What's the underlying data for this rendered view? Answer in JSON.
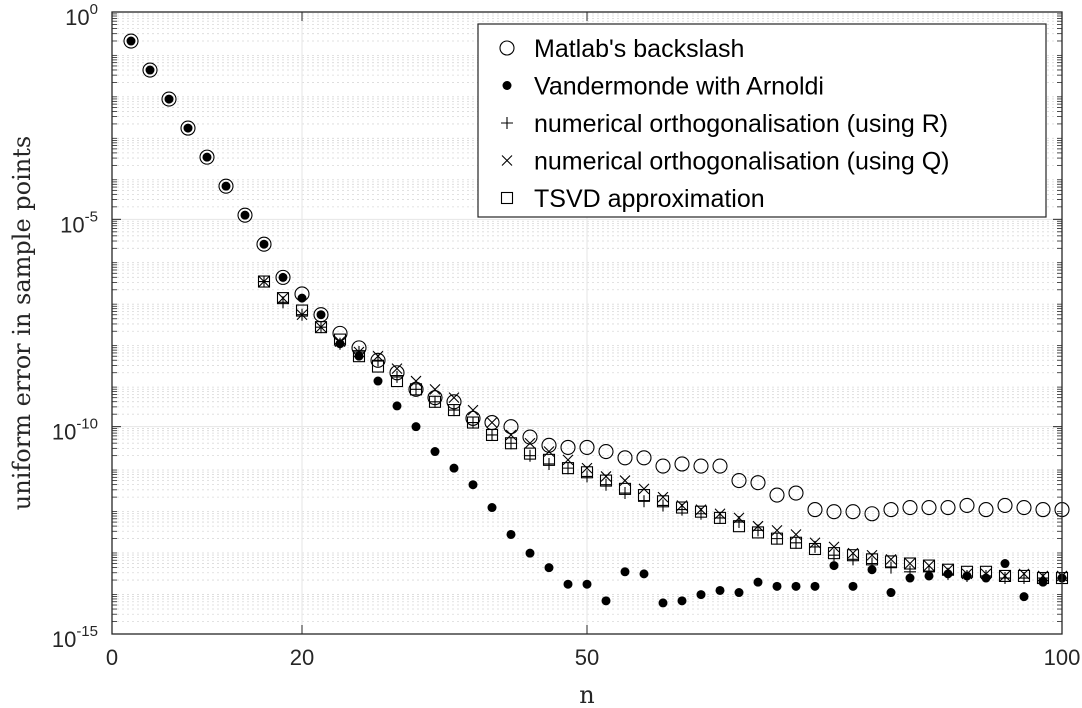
{
  "chart_data": {
    "type": "scatter",
    "title": "",
    "xlabel": "n",
    "ylabel": "uniform error in sample points",
    "xlim": [
      0,
      100
    ],
    "ylim_log10": [
      -15,
      0
    ],
    "x_scale": "linear",
    "y_scale": "log",
    "grid": true,
    "legend_position": "top-right",
    "x_ticks": [
      {
        "value": 0,
        "label": "0"
      },
      {
        "value": 20,
        "label": "20"
      },
      {
        "value": 50,
        "label": "50"
      },
      {
        "value": 100,
        "label": "100"
      }
    ],
    "y_ticks": [
      {
        "exp": 0,
        "base": "10",
        "power": "0"
      },
      {
        "exp": -5,
        "base": "10",
        "power": "-5"
      },
      {
        "exp": -10,
        "base": "10",
        "power": "-10"
      },
      {
        "exp": -15,
        "base": "10",
        "power": "-15"
      }
    ],
    "series": [
      {
        "name": "Matlab's backslash",
        "marker": "circle-open",
        "x": [
          2,
          4,
          6,
          8,
          10,
          12,
          14,
          16,
          18,
          20,
          22,
          24,
          26,
          28,
          30,
          32,
          34,
          36,
          38,
          40,
          42,
          44,
          46,
          48,
          50,
          52,
          54,
          56,
          58,
          60,
          62,
          64,
          66,
          68,
          70,
          72,
          74,
          76,
          78,
          80,
          82,
          84,
          86,
          88,
          90,
          92,
          94,
          96,
          98,
          100
        ],
        "log10_y": [
          -0.7,
          -1.4,
          -2.1,
          -2.8,
          -3.5,
          -4.2,
          -4.9,
          -5.6,
          -6.4,
          -6.8,
          -7.3,
          -7.75,
          -8.1,
          -8.4,
          -8.7,
          -9.1,
          -9.3,
          -9.4,
          -9.8,
          -9.9,
          -10.0,
          -10.25,
          -10.45,
          -10.5,
          -10.5,
          -10.6,
          -10.75,
          -10.75,
          -10.95,
          -10.9,
          -10.95,
          -10.95,
          -11.3,
          -11.35,
          -11.65,
          -11.6,
          -12.0,
          -12.05,
          -12.05,
          -12.1,
          -12.0,
          -11.95,
          -11.95,
          -11.95,
          -11.9,
          -12.0,
          -11.9,
          -11.95,
          -12.0,
          -12.0
        ]
      },
      {
        "name": "Vandermonde with Arnoldi",
        "marker": "dot-filled",
        "x": [
          2,
          4,
          6,
          8,
          10,
          12,
          14,
          16,
          18,
          20,
          22,
          24,
          26,
          28,
          30,
          32,
          34,
          36,
          38,
          40,
          42,
          44,
          46,
          48,
          50,
          52,
          54,
          56,
          58,
          60,
          62,
          64,
          66,
          68,
          70,
          72,
          74,
          76,
          78,
          80,
          82,
          84,
          86,
          88,
          90,
          92,
          94,
          96,
          98,
          100
        ],
        "log10_y": [
          -0.7,
          -1.4,
          -2.1,
          -2.8,
          -3.5,
          -4.2,
          -4.9,
          -5.6,
          -6.4,
          -6.9,
          -7.3,
          -8.0,
          -8.3,
          -8.9,
          -9.5,
          -10.0,
          -10.6,
          -11.0,
          -11.4,
          -11.95,
          -12.6,
          -13.05,
          -13.4,
          -13.8,
          -13.8,
          -14.2,
          -13.5,
          -13.55,
          -14.25,
          -14.2,
          -14.05,
          -13.95,
          -14.0,
          -13.75,
          -13.85,
          -13.85,
          -13.85,
          -13.35,
          -13.85,
          -13.45,
          -14.0,
          -13.65,
          -13.6,
          -13.55,
          -13.6,
          -13.65,
          -13.3,
          -14.1,
          -13.75,
          -13.65
        ]
      },
      {
        "name": "numerical orthogonalisation (using R)",
        "marker": "plus",
        "x": [
          16,
          18,
          20,
          22,
          24,
          26,
          28,
          30,
          32,
          34,
          36,
          38,
          40,
          42,
          44,
          46,
          48,
          50,
          52,
          54,
          56,
          58,
          60,
          62,
          64,
          66,
          68,
          70,
          72,
          74,
          76,
          78,
          80,
          82,
          84,
          86,
          88,
          90,
          92,
          94,
          96,
          98,
          100
        ],
        "log10_y": [
          -6.5,
          -7.0,
          -7.3,
          -7.6,
          -8.0,
          -8.2,
          -8.4,
          -8.8,
          -9.1,
          -9.4,
          -9.6,
          -9.9,
          -10.2,
          -10.4,
          -10.7,
          -10.9,
          -11.0,
          -11.2,
          -11.4,
          -11.6,
          -11.8,
          -11.9,
          -12.0,
          -12.1,
          -12.2,
          -12.3,
          -12.5,
          -12.7,
          -12.8,
          -12.9,
          -13.1,
          -13.2,
          -13.3,
          -13.4,
          -13.5,
          -13.5,
          -13.55,
          -13.6,
          -13.6,
          -13.65,
          -13.65,
          -13.65,
          -13.65
        ]
      },
      {
        "name": "numerical orthogonalisation (using Q)",
        "marker": "cross",
        "x": [
          16,
          18,
          20,
          22,
          24,
          26,
          28,
          30,
          32,
          34,
          36,
          38,
          40,
          42,
          44,
          46,
          48,
          50,
          52,
          54,
          56,
          58,
          60,
          62,
          64,
          66,
          68,
          70,
          72,
          74,
          76,
          78,
          80,
          82,
          84,
          86,
          88,
          90,
          92,
          94,
          96,
          98,
          100
        ],
        "log10_y": [
          -6.5,
          -6.9,
          -7.3,
          -7.6,
          -7.95,
          -8.2,
          -8.3,
          -8.6,
          -8.9,
          -9.1,
          -9.3,
          -9.6,
          -9.9,
          -10.2,
          -10.4,
          -10.6,
          -10.8,
          -11.0,
          -11.2,
          -11.3,
          -11.5,
          -11.7,
          -11.9,
          -12.0,
          -12.1,
          -12.2,
          -12.4,
          -12.5,
          -12.6,
          -12.8,
          -12.9,
          -13.05,
          -13.1,
          -13.2,
          -13.3,
          -13.35,
          -13.45,
          -13.55,
          -13.55,
          -13.6,
          -13.55,
          -13.6,
          -13.6
        ]
      },
      {
        "name": "TSVD approximation",
        "marker": "square-open",
        "x": [
          16,
          18,
          20,
          22,
          24,
          26,
          28,
          30,
          32,
          34,
          36,
          38,
          40,
          42,
          44,
          46,
          48,
          50,
          52,
          54,
          56,
          58,
          60,
          62,
          64,
          66,
          68,
          70,
          72,
          74,
          76,
          78,
          80,
          82,
          84,
          86,
          88,
          90,
          92,
          94,
          96,
          98,
          100
        ],
        "log10_y": [
          -6.5,
          -6.9,
          -7.2,
          -7.6,
          -7.9,
          -8.3,
          -8.55,
          -8.9,
          -9.1,
          -9.4,
          -9.6,
          -9.9,
          -10.2,
          -10.4,
          -10.65,
          -10.8,
          -11.0,
          -11.1,
          -11.3,
          -11.5,
          -11.65,
          -11.8,
          -11.95,
          -12.05,
          -12.2,
          -12.4,
          -12.55,
          -12.7,
          -12.8,
          -12.95,
          -13.05,
          -13.1,
          -13.2,
          -13.25,
          -13.3,
          -13.35,
          -13.45,
          -13.5,
          -13.5,
          -13.6,
          -13.6,
          -13.65,
          -13.65
        ]
      }
    ]
  }
}
